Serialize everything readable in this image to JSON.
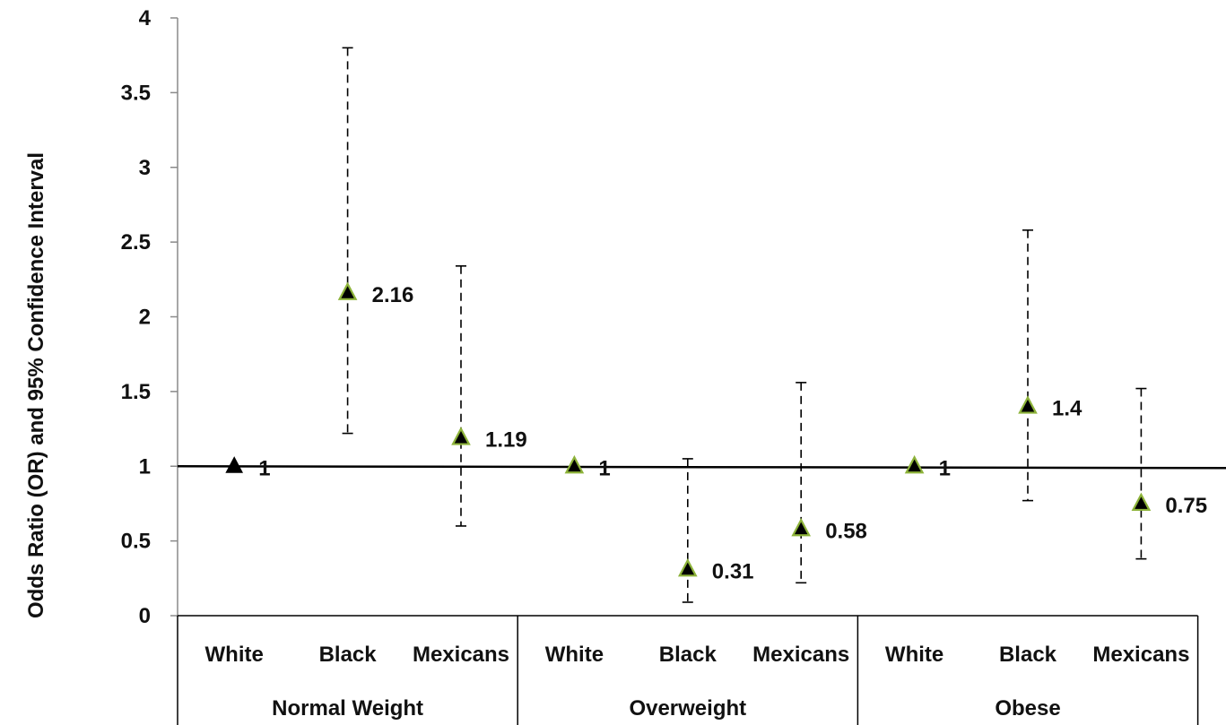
{
  "chart_data": {
    "type": "scatter",
    "ylabel": "Odds Ratio (OR) and 95% Confidence Interval",
    "ylim": [
      0,
      4
    ],
    "yticks": [
      "0",
      "0.5",
      "1",
      "1.5",
      "2",
      "2.5",
      "3",
      "3.5",
      "4"
    ],
    "reference_line": 1,
    "groups": [
      {
        "label": "Normal Weight",
        "categories": [
          "White",
          "Black",
          "Mexicans"
        ]
      },
      {
        "label": "Overweight",
        "categories": [
          "White",
          "Black",
          "Mexicans"
        ]
      },
      {
        "label": "Obese",
        "categories": [
          "White",
          "Black",
          "Mexicans"
        ]
      }
    ],
    "points": [
      {
        "group": "Normal Weight",
        "category": "White",
        "or": 1,
        "label": "1",
        "ci": null
      },
      {
        "group": "Normal Weight",
        "category": "Black",
        "or": 2.16,
        "label": "2.16",
        "ci": [
          1.22,
          3.8
        ]
      },
      {
        "group": "Normal Weight",
        "category": "Mexicans",
        "or": 1.19,
        "label": "1.19",
        "ci": [
          0.6,
          2.34
        ]
      },
      {
        "group": "Overweight",
        "category": "White",
        "or": 1,
        "label": "1",
        "ci": null
      },
      {
        "group": "Overweight",
        "category": "Black",
        "or": 0.31,
        "label": "0.31",
        "ci": [
          0.09,
          1.05
        ]
      },
      {
        "group": "Overweight",
        "category": "Mexicans",
        "or": 0.58,
        "label": "0.58",
        "ci": [
          0.22,
          1.56
        ]
      },
      {
        "group": "Obese",
        "category": "White",
        "or": 1,
        "label": "1",
        "ci": null
      },
      {
        "group": "Obese",
        "category": "Black",
        "or": 1.4,
        "label": "1.4",
        "ci": [
          0.77,
          2.58
        ]
      },
      {
        "group": "Obese",
        "category": "Mexicans",
        "or": 0.75,
        "label": "0.75",
        "ci": [
          0.38,
          1.52
        ]
      }
    ],
    "colors": {
      "reference_marker": "#000000",
      "marker_fill": "#000000",
      "marker_outline": "#8db33a"
    },
    "grid": false,
    "legend": "none"
  }
}
